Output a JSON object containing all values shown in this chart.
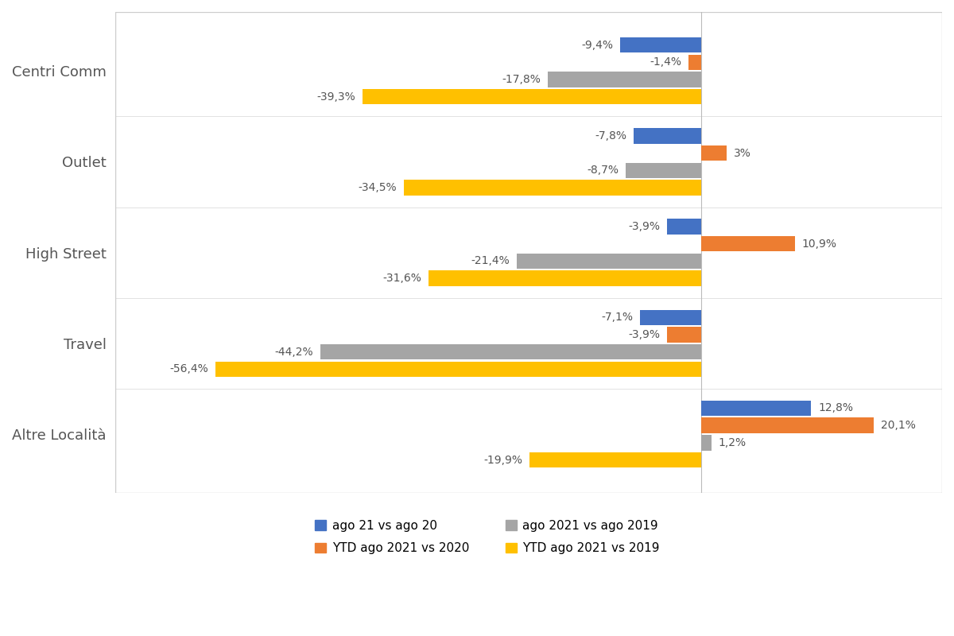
{
  "categories": [
    "Centri Comm",
    "Outlet",
    "High Street",
    "Travel",
    "Altre Località"
  ],
  "series": {
    "ago_21_vs_ago_20": [
      -9.4,
      -7.8,
      -3.9,
      -7.1,
      12.8
    ],
    "YTD_ago_2021_vs_2020": [
      -1.4,
      3.0,
      10.9,
      -3.9,
      20.1
    ],
    "ago_2021_vs_ago_2019": [
      -17.8,
      -8.7,
      -21.4,
      -44.2,
      1.2
    ],
    "YTD_ago_2021_vs_2019": [
      -39.3,
      -34.5,
      -31.6,
      -56.4,
      -19.9
    ]
  },
  "colors": {
    "ago_21_vs_ago_20": "#4472C4",
    "YTD_ago_2021_vs_2020": "#ED7D31",
    "ago_2021_vs_ago_2019": "#A5A5A5",
    "YTD_ago_2021_vs_2019": "#FFC000"
  },
  "legend_labels": {
    "ago_21_vs_ago_20": "ago 21 vs ago 20",
    "YTD_ago_2021_vs_2020": "YTD ago 2021 vs 2020",
    "ago_2021_vs_ago_2019": "ago 2021 vs ago 2019",
    "YTD_ago_2021_vs_2019": "YTD ago 2021 vs 2019"
  },
  "xlim": [
    -68,
    28
  ],
  "bar_height": 0.17,
  "bar_gap": 0.02,
  "label_fontsize": 10,
  "category_fontsize": 13,
  "background_color": "#FFFFFF",
  "figure_background": "#FFFFFF",
  "series_order": [
    "ago_21_vs_ago_20",
    "YTD_ago_2021_vs_2020",
    "ago_2021_vs_ago_2019",
    "YTD_ago_2021_vs_2019"
  ],
  "legend_order": [
    "ago_21_vs_ago_20",
    "YTD_ago_2021_vs_2020",
    "ago_2021_vs_ago_2019",
    "YTD_ago_2021_vs_2019"
  ]
}
